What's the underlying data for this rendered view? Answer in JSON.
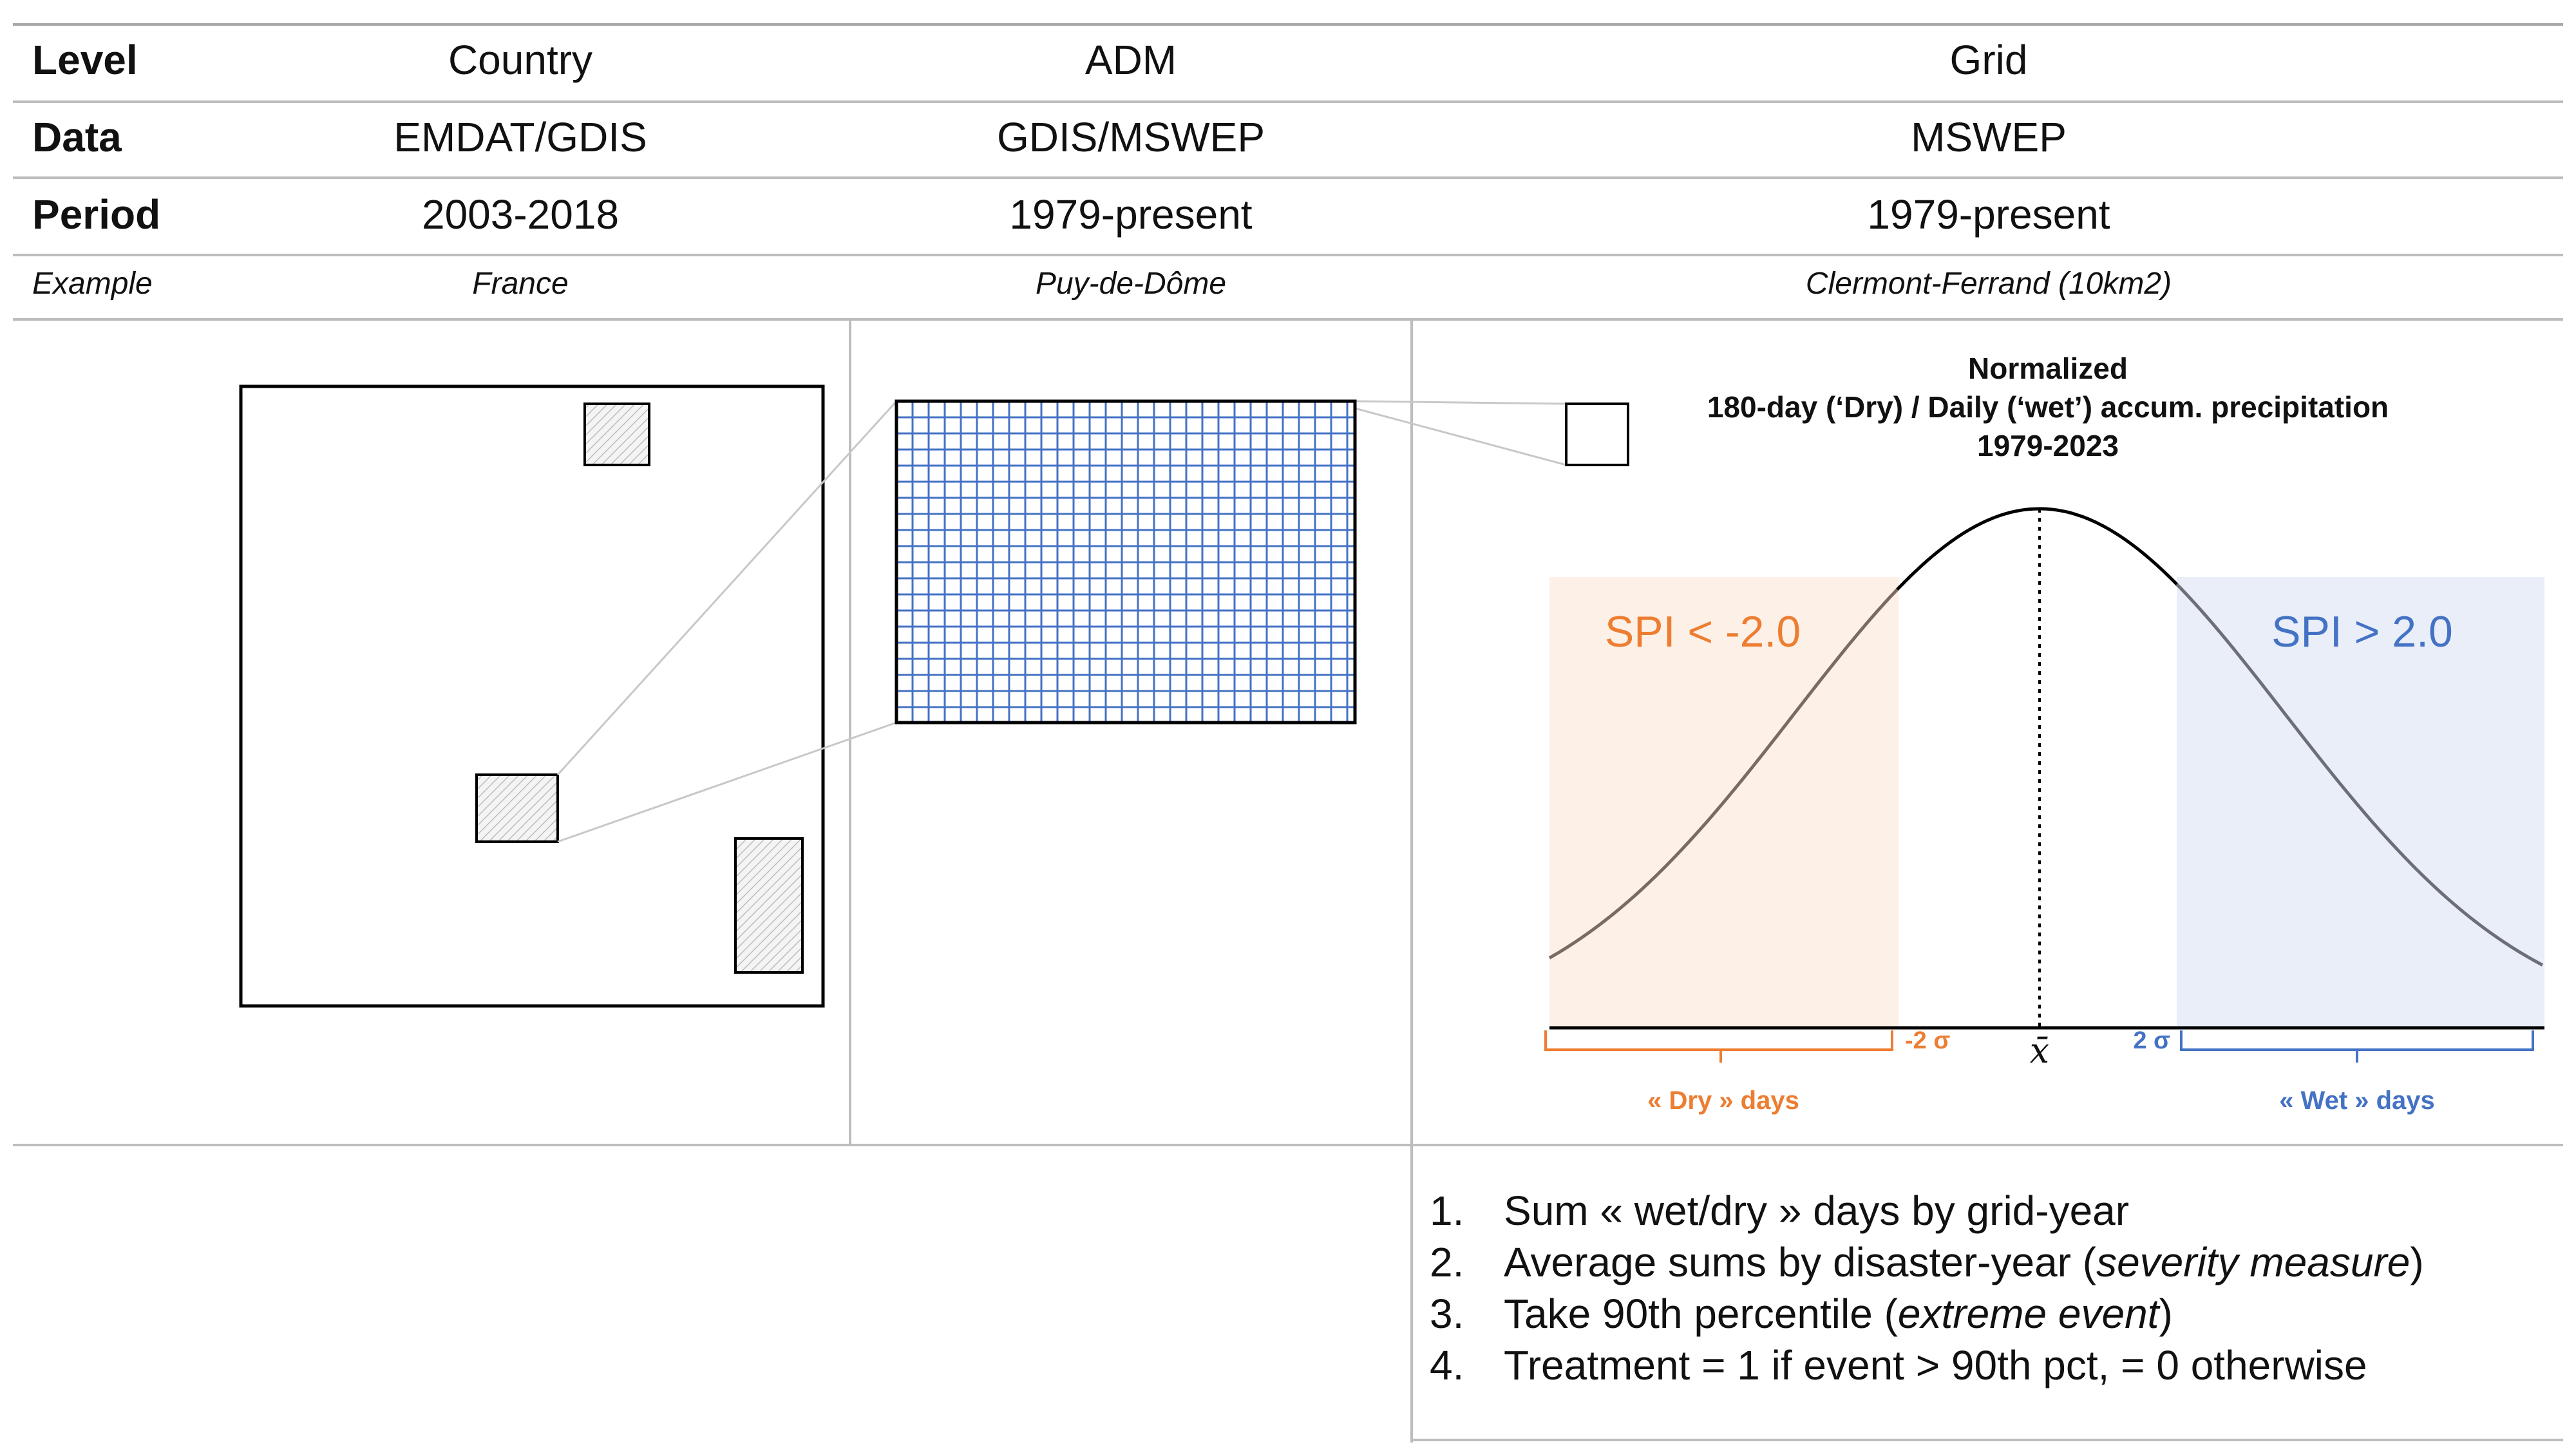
{
  "table": {
    "rows": [
      {
        "label": "Level",
        "country": "Country",
        "adm": "ADM",
        "grid": "Grid"
      },
      {
        "label": "Data",
        "country": "EMDAT/GDIS",
        "adm": "GDIS/MSWEP",
        "grid": "MSWEP"
      },
      {
        "label": "Period",
        "country": "2003-2018",
        "adm": "1979-present",
        "grid": "1979-present"
      }
    ],
    "example": {
      "label": "Example",
      "country": "France",
      "adm": "Puy-de-Dôme",
      "grid": "Clermont-Ferrand (10km2)"
    }
  },
  "distribution": {
    "title_lines": [
      "Normalized",
      "180-day (‘Dry) / Daily (‘wet’) accum. precipitation",
      "1979-2023"
    ],
    "dry_region_label": "SPI < -2.0",
    "wet_region_label": "SPI > 2.0",
    "minus_sigma_label": "-2 σ",
    "plus_sigma_label": "2 σ",
    "mean_label": "x̄",
    "dry_days_label": "« Dry » days",
    "wet_days_label": "« Wet » days",
    "colors": {
      "dry": "#ed7d31",
      "dry_fill": "#fdf0e7",
      "wet": "#4472c4",
      "wet_fill": "#e9eef8",
      "grid": "#4472c4"
    }
  },
  "steps": [
    {
      "num": "1.",
      "parts": [
        {
          "text": "Sum « wet/dry » days by grid-year",
          "italic": false
        }
      ]
    },
    {
      "num": "2.",
      "parts": [
        {
          "text": "Average sums by disaster-year (",
          "italic": false
        },
        {
          "text": "severity measure",
          "italic": true
        },
        {
          "text": ")",
          "italic": false
        }
      ]
    },
    {
      "num": "3.",
      "parts": [
        {
          "text": "Take 90th percentile (",
          "italic": false
        },
        {
          "text": "extreme event",
          "italic": true
        },
        {
          "text": ")",
          "italic": false
        }
      ]
    },
    {
      "num": "4.",
      "parts": [
        {
          "text": "Treatment = 1 if event > 90th pct, = 0 otherwise",
          "italic": false
        }
      ]
    }
  ]
}
